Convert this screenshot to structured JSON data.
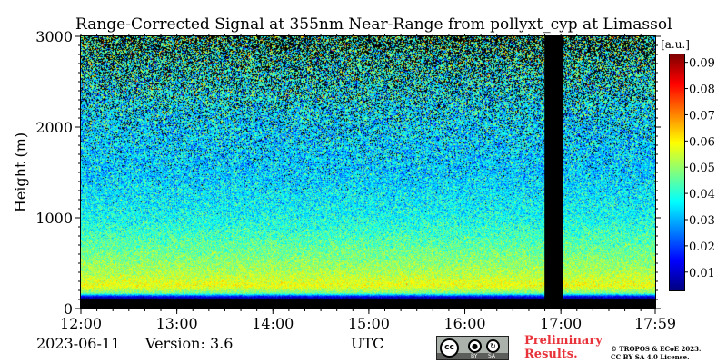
{
  "chart_data": {
    "type": "heatmap",
    "title": "Range-Corrected Signal at 355nm Near-Range from pollyxt_cyp at Limassol",
    "xlabel": "UTC",
    "ylabel": "Height (m)",
    "x_ticks": [
      "12:00",
      "13:00",
      "14:00",
      "15:00",
      "16:00",
      "17:00",
      "17:59"
    ],
    "x_tick_hours": [
      12.0,
      13.0,
      14.0,
      15.0,
      16.0,
      17.0,
      17.983
    ],
    "xlim_hours": [
      12.0,
      17.983
    ],
    "y_ticks": [
      0,
      1000,
      2000,
      3000
    ],
    "ylim": [
      0,
      3000
    ],
    "colorbar": {
      "unit_label": "[a.u.]",
      "ticks": [
        0.01,
        0.02,
        0.03,
        0.04,
        0.05,
        0.06,
        0.07,
        0.08,
        0.09
      ],
      "range": [
        0.003,
        0.093
      ],
      "colormap": "jet"
    },
    "no_data_interval_hours": [
      16.83,
      17.02
    ],
    "profile": [
      {
        "height": 0,
        "value": 0.0
      },
      {
        "height": 100,
        "value": 0.0
      },
      {
        "height": 130,
        "value": 0.012
      },
      {
        "height": 170,
        "value": 0.048
      },
      {
        "height": 250,
        "value": 0.058
      },
      {
        "height": 400,
        "value": 0.052
      },
      {
        "height": 700,
        "value": 0.045
      },
      {
        "height": 1000,
        "value": 0.038
      },
      {
        "height": 1500,
        "value": 0.033
      },
      {
        "height": 2000,
        "value": 0.034
      },
      {
        "height": 2500,
        "value": 0.038
      },
      {
        "height": 3000,
        "value": 0.043
      }
    ]
  },
  "footer": {
    "date": "2023-06-11",
    "version": "Version: 3.6",
    "preliminary_line1": "Preliminary",
    "preliminary_line2": "Results.",
    "copyright_line1": "© TROPOS & ECoE 2023.",
    "copyright_line2": "CC BY SA 4.0 License."
  },
  "license_badge": {
    "logo_text": "cc",
    "by_label": "BY",
    "sa_label": "SA"
  }
}
